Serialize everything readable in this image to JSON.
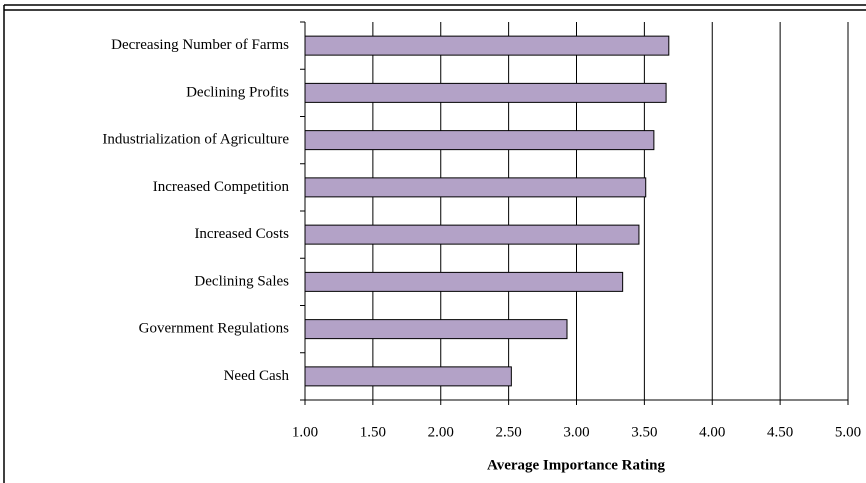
{
  "chart_data": {
    "type": "bar",
    "orientation": "horizontal",
    "x_label": "Average Importance Rating",
    "categories": [
      "Decreasing Number of Farms",
      "Declining Profits",
      "Industrialization of Agriculture",
      "Increased Competition",
      "Increased Costs",
      "Declining Sales",
      "Government Regulations",
      "Need Cash"
    ],
    "values": [
      3.68,
      3.66,
      3.57,
      3.51,
      3.46,
      3.34,
      2.93,
      2.52
    ],
    "color": "#b3a2c7",
    "xlim": [
      1,
      5
    ],
    "xticks": [
      {
        "value": 1,
        "label": "1.00"
      },
      {
        "value": 1.5,
        "label": "1.50"
      },
      {
        "value": 2,
        "label": "2.00"
      },
      {
        "value": 2.5,
        "label": "2.50"
      },
      {
        "value": 3,
        "label": "3.00"
      },
      {
        "value": 3.5,
        "label": "3.50"
      },
      {
        "value": 4,
        "label": "4.00"
      },
      {
        "value": 4.5,
        "label": "4.50"
      },
      {
        "value": 5,
        "label": "5.00"
      }
    ],
    "grid": true
  }
}
